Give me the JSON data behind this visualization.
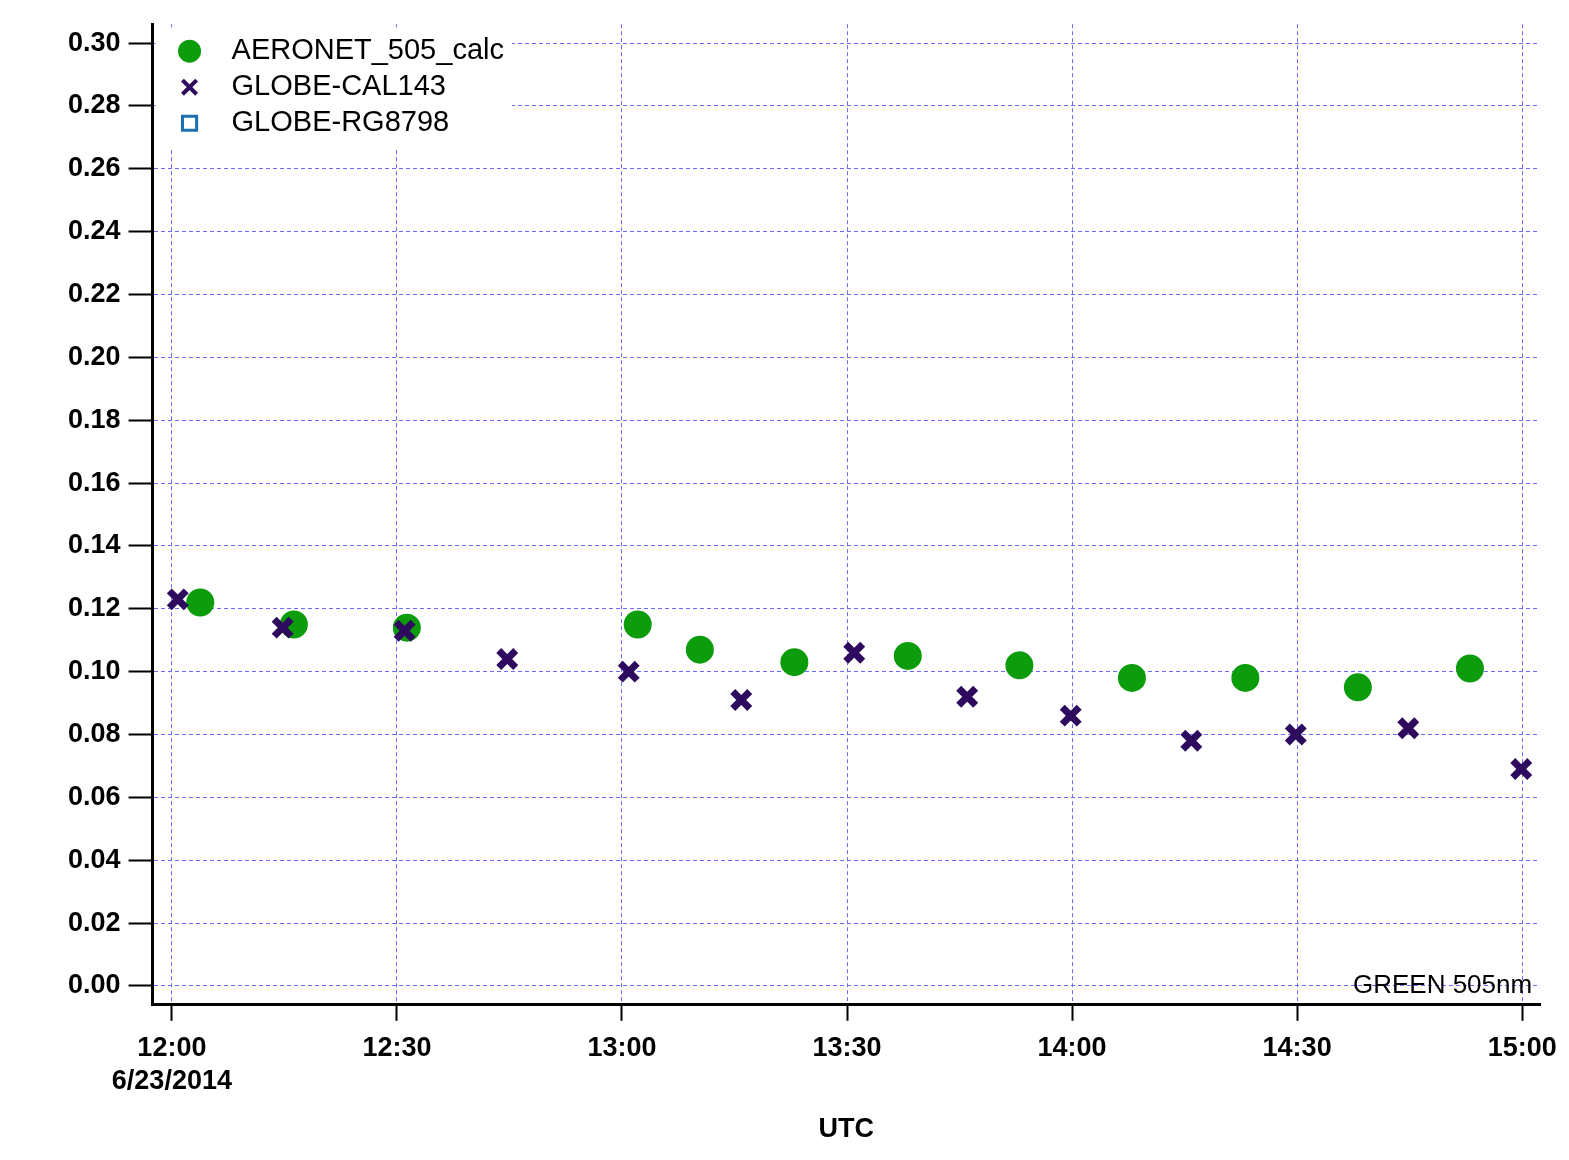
{
  "chart_data": {
    "type": "scatter",
    "xlabel": "UTC",
    "annotations": [
      "GREEN 505nm"
    ],
    "xlim": [
      11.957,
      15.04
    ],
    "ylim": [
      -0.006,
      0.306
    ],
    "xticks": [
      {
        "value": 12,
        "label": "12:00\n6/23/2014"
      },
      {
        "value": 12.5,
        "label": "12:30"
      },
      {
        "value": 13,
        "label": "13:00"
      },
      {
        "value": 13.5,
        "label": "13:30"
      },
      {
        "value": 14,
        "label": "14:00"
      },
      {
        "value": 14.5,
        "label": "14:30"
      },
      {
        "value": 15,
        "label": "15:00"
      }
    ],
    "yticks": [
      {
        "value": 0,
        "label": "0.00"
      },
      {
        "value": 0.02,
        "label": "0.02"
      },
      {
        "value": 0.04,
        "label": "0.04"
      },
      {
        "value": 0.06,
        "label": "0.06"
      },
      {
        "value": 0.08,
        "label": "0.08"
      },
      {
        "value": 0.1,
        "label": "0.10"
      },
      {
        "value": 0.12,
        "label": "0.12"
      },
      {
        "value": 0.14,
        "label": "0.14"
      },
      {
        "value": 0.16,
        "label": "0.16"
      },
      {
        "value": 0.18,
        "label": "0.18"
      },
      {
        "value": 0.2,
        "label": "0.20"
      },
      {
        "value": 0.22,
        "label": "0.22"
      },
      {
        "value": 0.24,
        "label": "0.24"
      },
      {
        "value": 0.26,
        "label": "0.26"
      },
      {
        "value": 0.28,
        "label": "0.28"
      },
      {
        "value": 0.3,
        "label": "0.30"
      }
    ],
    "grid": true,
    "legend": "top left",
    "line_style": "dashed",
    "series": [
      {
        "name": "AERONET_505_calc",
        "color": "#0c9c0c",
        "marker": "circle",
        "x": [
          12.063,
          12.271,
          12.522,
          13.035,
          13.173,
          13.383,
          13.635,
          13.883,
          14.133,
          14.385,
          14.635,
          14.884
        ],
        "values": [
          0.122,
          0.115,
          0.114,
          0.115,
          0.107,
          0.103,
          0.105,
          0.102,
          0.098,
          0.098,
          0.095,
          0.101
        ]
      },
      {
        "name": "GLOBE-CAL143",
        "color": "#2e0a5e",
        "marker": "cross",
        "x": [
          12.013,
          12.246,
          12.517,
          12.745,
          13.015,
          13.265,
          13.516,
          13.767,
          13.997,
          14.265,
          14.497,
          14.747,
          14.998
        ],
        "values": [
          0.123,
          0.114,
          0.113,
          0.104,
          0.1,
          0.091,
          0.106,
          0.092,
          0.086,
          0.078,
          0.08,
          0.082,
          0.069
        ]
      },
      {
        "name": "GLOBE-RG8798",
        "color": "#1f6fb0",
        "marker": "square"
      }
    ]
  }
}
